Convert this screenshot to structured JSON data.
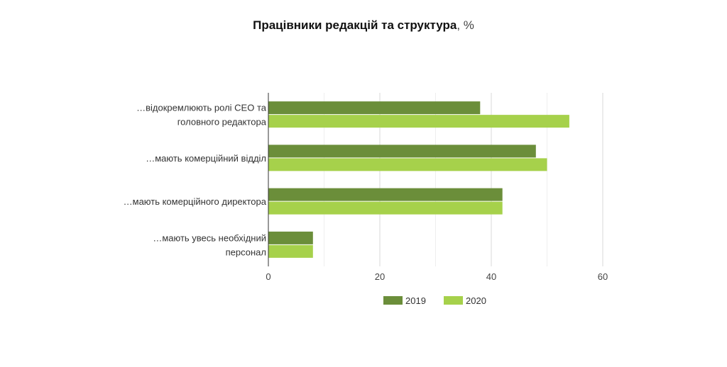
{
  "chart_data": {
    "type": "bar",
    "orientation": "horizontal",
    "title": "Працівники редакцій та структура",
    "title_unit": ", %",
    "categories": [
      [
        "…відокремлюють ролі CEO та",
        "головного редактора"
      ],
      [
        "…мають комерційний відділ"
      ],
      [
        "…мають комерційного директора"
      ],
      [
        "…мають увесь необхідний",
        "персонал"
      ]
    ],
    "series": [
      {
        "name": "2019",
        "color": "#6b8e3a",
        "values": [
          38,
          48,
          42,
          8
        ]
      },
      {
        "name": "2020",
        "color": "#a6d14b",
        "values": [
          54,
          50,
          42,
          8
        ]
      }
    ],
    "xlim": [
      0,
      60
    ],
    "xticks": [
      0,
      20,
      40,
      60
    ],
    "grid": true,
    "legend_position": "bottom"
  }
}
